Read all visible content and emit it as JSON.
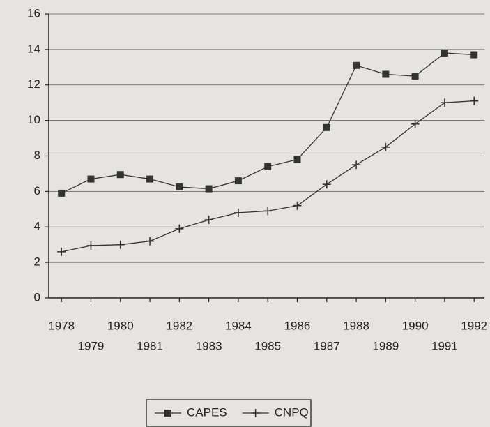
{
  "chart_data": {
    "type": "line",
    "x": [
      1978,
      1979,
      1980,
      1981,
      1982,
      1983,
      1984,
      1985,
      1986,
      1987,
      1988,
      1989,
      1990,
      1991,
      1992
    ],
    "series": [
      {
        "name": "CAPES",
        "color": "#333333",
        "marker": "square",
        "values": [
          5.9,
          6.7,
          6.95,
          6.7,
          6.25,
          6.15,
          6.6,
          7.4,
          7.8,
          9.6,
          13.1,
          12.6,
          12.5,
          13.8,
          13.7
        ]
      },
      {
        "name": "CNPQ",
        "color": "#333333",
        "marker": "plus",
        "values": [
          2.6,
          2.95,
          3.0,
          3.2,
          3.9,
          4.4,
          4.8,
          4.9,
          5.2,
          6.4,
          7.5,
          8.5,
          9.8,
          11.0,
          11.1
        ]
      }
    ],
    "xlim": [
      1977.57,
      1992.35
    ],
    "xticks": [
      1978,
      1979,
      1980,
      1981,
      1982,
      1983,
      1984,
      1985,
      1986,
      1987,
      1988,
      1989,
      1990,
      1991,
      1992
    ],
    "ylim": [
      0,
      16
    ],
    "yticks": [
      0,
      2,
      4,
      6,
      8,
      10,
      12,
      14,
      16
    ],
    "grid": true,
    "legend": "bottom"
  }
}
